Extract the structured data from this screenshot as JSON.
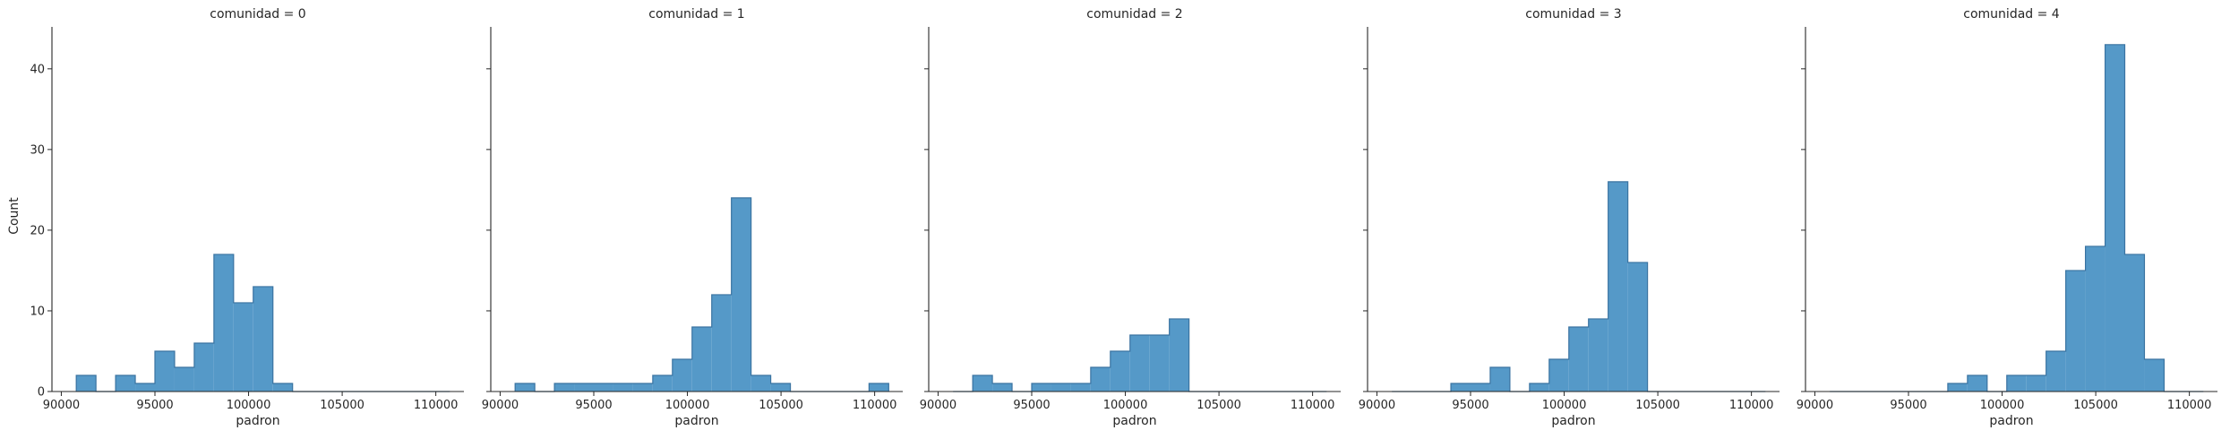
{
  "chart_data": {
    "type": "bar",
    "ylabel": "Count",
    "xlabel": "padron",
    "bin_edges": [
      90800,
      91850,
      92900,
      93950,
      95000,
      96050,
      97100,
      98150,
      99200,
      100250,
      101300,
      102350,
      103400,
      104450,
      105500,
      106550,
      107600,
      108650,
      109700,
      110750
    ],
    "x_ticks": [
      90000,
      95000,
      100000,
      105000,
      110000
    ],
    "x_tick_labels": [
      "90000",
      "95000",
      "100000",
      "105000",
      "110000"
    ],
    "xlim": [
      89500,
      111500
    ],
    "y_ticks": [
      0,
      10,
      20,
      30,
      40
    ],
    "y_tick_labels": [
      "0",
      "10",
      "20",
      "30",
      "40"
    ],
    "ylim": [
      0,
      45.2
    ],
    "grid": false,
    "colors": {
      "fill": "#5599c8",
      "edge": "#3a73a1",
      "axis": "#262626"
    },
    "panels": [
      {
        "title": "comunidad = 0",
        "counts": [
          2,
          0,
          2,
          1,
          5,
          3,
          6,
          17,
          11,
          13,
          1,
          0,
          0,
          0,
          0,
          0,
          0,
          0,
          0
        ]
      },
      {
        "title": "comunidad = 1",
        "counts": [
          1,
          0,
          1,
          1,
          1,
          1,
          1,
          2,
          4,
          8,
          12,
          24,
          2,
          1,
          0,
          0,
          0,
          0,
          1
        ]
      },
      {
        "title": "comunidad = 2",
        "counts": [
          0,
          2,
          1,
          0,
          1,
          1,
          1,
          3,
          5,
          7,
          7,
          9,
          0,
          0,
          0,
          0,
          0,
          0,
          0
        ]
      },
      {
        "title": "comunidad = 3",
        "counts": [
          0,
          0,
          0,
          1,
          1,
          3,
          0,
          1,
          4,
          8,
          9,
          26,
          16,
          0,
          0,
          0,
          0,
          0,
          0
        ]
      },
      {
        "title": "comunidad = 4",
        "counts": [
          0,
          0,
          0,
          0,
          0,
          0,
          1,
          2,
          0,
          2,
          2,
          5,
          15,
          18,
          43,
          17,
          4,
          0,
          0
        ]
      }
    ]
  }
}
